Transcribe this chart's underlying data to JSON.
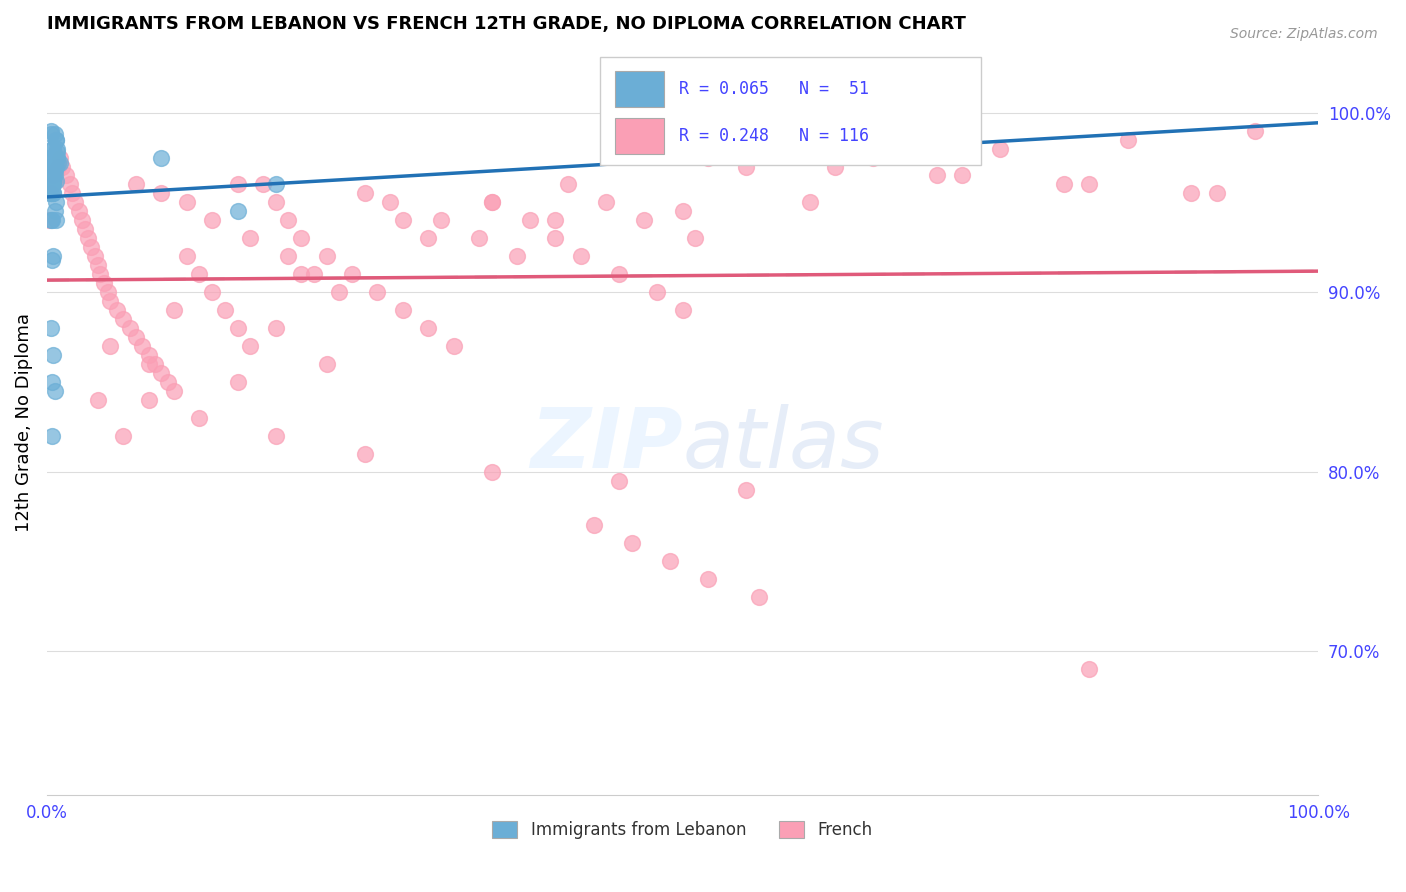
{
  "title": "IMMIGRANTS FROM LEBANON VS FRENCH 12TH GRADE, NO DIPLOMA CORRELATION CHART",
  "source": "Source: ZipAtlas.com",
  "ylabel": "12th Grade, No Diploma",
  "legend_blue_label": "Immigrants from Lebanon",
  "legend_pink_label": "French",
  "R_blue": 0.065,
  "N_blue": 51,
  "R_pink": 0.248,
  "N_pink": 116,
  "blue_color": "#6baed6",
  "pink_color": "#fa9fb5",
  "trendline_blue_color": "#2171b5",
  "trendline_pink_color": "#e05a7a",
  "trendline_gray_color": "#bbbbbb",
  "axis_label_color": "#4444ff",
  "ytick_labels": [
    "100.0%",
    "90.0%",
    "80.0%",
    "70.0%"
  ],
  "ytick_positions": [
    1.0,
    0.9,
    0.8,
    0.7
  ],
  "xlim": [
    0.0,
    1.0
  ],
  "ylim": [
    0.62,
    1.035
  ],
  "blue_x": [
    0.005,
    0.007,
    0.008,
    0.003,
    0.004,
    0.006,
    0.009,
    0.002,
    0.005,
    0.003,
    0.006,
    0.004,
    0.007,
    0.008,
    0.005,
    0.003,
    0.001,
    0.006,
    0.004,
    0.002,
    0.01,
    0.005,
    0.007,
    0.008,
    0.003,
    0.09,
    0.005,
    0.004,
    0.006,
    0.003,
    0.007,
    0.005,
    0.008,
    0.004,
    0.006,
    0.005,
    0.003,
    0.15,
    0.007,
    0.004,
    0.005,
    0.003,
    0.006,
    0.18,
    0.004,
    0.005,
    0.003,
    0.006,
    0.004,
    0.005,
    0.007
  ],
  "blue_y": [
    0.98,
    0.985,
    0.975,
    0.99,
    0.97,
    0.988,
    0.972,
    0.96,
    0.965,
    0.955,
    0.945,
    0.94,
    0.95,
    0.978,
    0.962,
    0.97,
    0.975,
    0.968,
    0.98,
    0.955,
    0.972,
    0.96,
    0.985,
    0.98,
    0.988,
    0.975,
    0.92,
    0.918,
    0.965,
    0.97,
    0.962,
    0.955,
    0.975,
    0.96,
    0.845,
    0.865,
    0.88,
    0.945,
    0.94,
    0.85,
    0.963,
    0.97,
    0.975,
    0.96,
    0.82,
    0.955,
    0.94,
    0.97,
    0.975,
    0.962,
    0.97
  ],
  "pink_x": [
    0.002,
    0.003,
    0.005,
    0.005,
    0.007,
    0.009,
    0.01,
    0.012,
    0.015,
    0.018,
    0.02,
    0.022,
    0.025,
    0.028,
    0.03,
    0.032,
    0.035,
    0.038,
    0.04,
    0.042,
    0.045,
    0.048,
    0.05,
    0.055,
    0.06,
    0.065,
    0.07,
    0.075,
    0.08,
    0.085,
    0.09,
    0.095,
    0.1,
    0.11,
    0.12,
    0.13,
    0.14,
    0.15,
    0.16,
    0.17,
    0.18,
    0.19,
    0.2,
    0.22,
    0.24,
    0.26,
    0.28,
    0.3,
    0.32,
    0.35,
    0.38,
    0.4,
    0.42,
    0.45,
    0.48,
    0.5,
    0.22,
    0.15,
    0.08,
    0.12,
    0.18,
    0.25,
    0.35,
    0.45,
    0.55,
    0.3,
    0.2,
    0.1,
    0.05,
    0.15,
    0.25,
    0.35,
    0.28,
    0.18,
    0.08,
    0.04,
    0.06,
    0.07,
    0.09,
    0.11,
    0.13,
    0.16,
    0.19,
    0.21,
    0.23,
    0.27,
    0.31,
    0.34,
    0.37,
    0.41,
    0.44,
    0.47,
    0.51,
    0.46,
    0.52,
    0.95,
    0.85,
    0.75,
    0.65,
    0.55,
    0.7,
    0.8,
    0.9,
    0.6,
    0.5,
    0.62,
    0.72,
    0.82,
    0.92,
    0.4,
    0.43,
    0.46,
    0.49,
    0.52,
    0.56,
    0.82
  ],
  "pink_y": [
    0.94,
    0.955,
    0.965,
    0.96,
    0.968,
    0.97,
    0.975,
    0.97,
    0.965,
    0.96,
    0.955,
    0.95,
    0.945,
    0.94,
    0.935,
    0.93,
    0.925,
    0.92,
    0.915,
    0.91,
    0.905,
    0.9,
    0.895,
    0.89,
    0.885,
    0.88,
    0.875,
    0.87,
    0.865,
    0.86,
    0.855,
    0.85,
    0.845,
    0.92,
    0.91,
    0.9,
    0.89,
    0.88,
    0.87,
    0.96,
    0.95,
    0.94,
    0.93,
    0.92,
    0.91,
    0.9,
    0.89,
    0.88,
    0.87,
    0.95,
    0.94,
    0.93,
    0.92,
    0.91,
    0.9,
    0.89,
    0.86,
    0.85,
    0.84,
    0.83,
    0.82,
    0.81,
    0.8,
    0.795,
    0.79,
    0.93,
    0.91,
    0.89,
    0.87,
    0.96,
    0.955,
    0.95,
    0.94,
    0.88,
    0.86,
    0.84,
    0.82,
    0.96,
    0.955,
    0.95,
    0.94,
    0.93,
    0.92,
    0.91,
    0.9,
    0.95,
    0.94,
    0.93,
    0.92,
    0.96,
    0.95,
    0.94,
    0.93,
    0.98,
    0.975,
    0.99,
    0.985,
    0.98,
    0.975,
    0.97,
    0.965,
    0.96,
    0.955,
    0.95,
    0.945,
    0.97,
    0.965,
    0.96,
    0.955,
    0.94,
    0.77,
    0.76,
    0.75,
    0.74,
    0.73,
    0.69
  ]
}
